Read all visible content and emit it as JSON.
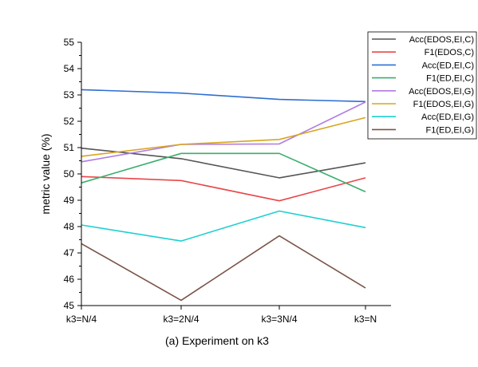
{
  "chart_data": {
    "type": "line",
    "caption": "(a) Experiment on k3",
    "ylabel": "metric value (%)",
    "xlabel": "",
    "categories": [
      "k3=N/4",
      "k3=2N/4",
      "k3=3N/4",
      "k3=N"
    ],
    "ylim": [
      45,
      55
    ],
    "yticks": [
      "45",
      "46",
      "47",
      "48",
      "49",
      "50",
      "51",
      "52",
      "53",
      "54",
      "55"
    ],
    "grid": false,
    "legend_position": "top-right",
    "series": [
      {
        "name": "Acc(EDOS,EI,C)",
        "color": "#555555",
        "values": [
          50.98,
          50.58,
          49.85,
          50.42
        ]
      },
      {
        "name": "F1(EDOS,C)",
        "color": "#e8474a",
        "values": [
          49.9,
          49.75,
          48.98,
          49.85
        ]
      },
      {
        "name": "Acc(ED,EI,C)",
        "color": "#2e6fd0",
        "values": [
          53.2,
          53.07,
          52.83,
          52.75
        ]
      },
      {
        "name": "F1(ED,EI,C)",
        "color": "#3aae6c",
        "values": [
          49.66,
          50.78,
          50.78,
          49.32
        ]
      },
      {
        "name": "Acc(EDOS,EI,G)",
        "color": "#b07be3",
        "values": [
          50.46,
          51.12,
          51.14,
          52.73
        ]
      },
      {
        "name": "F1(EDOS,EI,G)",
        "color": "#d8a520",
        "values": [
          50.67,
          51.12,
          51.31,
          52.14
        ]
      },
      {
        "name": "Acc(ED,EI,G)",
        "color": "#1fd0d0",
        "values": [
          48.06,
          47.45,
          48.59,
          47.96
        ]
      },
      {
        "name": "F1(ED,EI,G)",
        "color": "#7a5548",
        "values": [
          47.35,
          45.2,
          47.65,
          45.67
        ]
      }
    ]
  }
}
